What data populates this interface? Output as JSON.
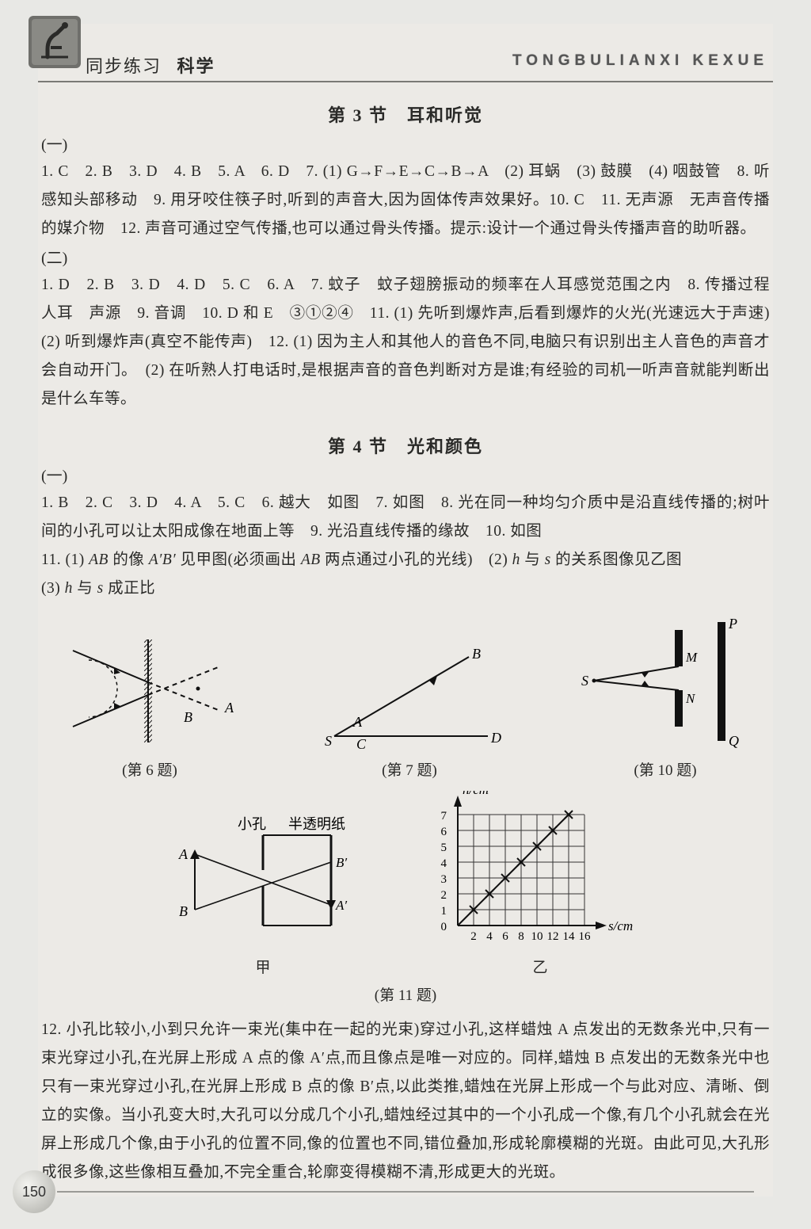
{
  "header": {
    "series": "同步练习",
    "subject": "科学",
    "pinyin": "TONGBULIANXI  KEXUE"
  },
  "section3": {
    "title": "第 3 节　耳和听觉",
    "part1_marker": "(一)",
    "part1_text": "1. C　2. B　3. D　4. B　5. A　6. D　7. (1) G→F→E→C→B→A　(2) 耳蜗　(3) 鼓膜　(4) 咽鼓管　8. 听　感知头部移动　9. 用牙咬住筷子时,听到的声音大,因为固体传声效果好。10. C　11. 无声源　无声音传播的媒介物　12. 声音可通过空气传播,也可以通过骨头传播。提示:设计一个通过骨头传播声音的助听器。",
    "part2_marker": "(二)",
    "part2_text": "1. D　2. B　3. D　4. D　5. C　6. A　7. 蚊子　蚊子翅膀振动的频率在人耳感觉范围之内　8. 传播过程　人耳　声源　9. 音调　10. D 和 E　③①②④　11. (1) 先听到爆炸声,后看到爆炸的火光(光速远大于声速)　(2) 听到爆炸声(真空不能传声)　12. (1) 因为主人和其他人的音色不同,电脑只有识别出主人音色的声音才会自动开门。　(2) 在听熟人打电话时,是根据声音的音色判断对方是谁;有经验的司机一听声音就能判断出是什么车等。"
  },
  "section4": {
    "title": "第 4 节　光和颜色",
    "part1_marker": "(一)",
    "text_a": "1. B　2. C　3. D　4. A　5. C　6. 越大　如图　7. 如图　8. 光在同一种均匀介质中是沿直线传播的;树叶间的小孔可以让太阳成像在地面上等　9. 光沿直线传播的缘故　10. 如图",
    "text_b_pre": "11. (1) ",
    "text_b_ab": "AB",
    "text_b_mid1": " 的像 ",
    "text_b_apbp": "A′B′",
    "text_b_mid2": " 见甲图(必须画出 ",
    "text_b_ab2": "AB",
    "text_b_mid3": " 两点通过小孔的光线)　(2) ",
    "text_b_h": "h",
    "text_b_mid4": " 与 ",
    "text_b_s": "s",
    "text_b_mid5": " 的关系图像见乙图",
    "text_c_pre": "(3) ",
    "text_c_h": "h",
    "text_c_mid": " 与 ",
    "text_c_s": "s",
    "text_c_end": " 成正比",
    "fig6_caption": "(第 6 题)",
    "fig7_caption": "(第 7 题)",
    "fig10_caption": "(第 10 题)",
    "fig11_jia": "甲",
    "fig11_yi": "乙",
    "fig11_caption": "(第 11 题)",
    "q12": "12. 小孔比较小,小到只允许一束光(集中在一起的光束)穿过小孔,这样蜡烛 A 点发出的无数条光中,只有一束光穿过小孔,在光屏上形成 A 点的像 A′点,而且像点是唯一对应的。同样,蜡烛 B 点发出的无数条光中也只有一束光穿过小孔,在光屏上形成 B 点的像 B′点,以此类推,蜡烛在光屏上形成一个与此对应、清晰、倒立的实像。当小孔变大时,大孔可以分成几个小孔,蜡烛经过其中的一个小孔成一个像,有几个小孔就会在光屏上形成几个像,由于小孔的位置不同,像的位置也不同,错位叠加,形成轮廓模糊的光斑。由此可见,大孔形成很多像,这些像相互叠加,不完全重合,轮廓变得模糊不清,形成更大的光斑。"
  },
  "figures": {
    "fig6": {
      "labels": {
        "A": "A",
        "B": "B"
      }
    },
    "fig7": {
      "labels": {
        "A": "A",
        "B": "B",
        "C": "C",
        "D": "D",
        "S": "S"
      }
    },
    "fig10": {
      "labels": {
        "S": "S",
        "M": "M",
        "N": "N",
        "P": "P",
        "Q": "Q"
      }
    },
    "fig11a": {
      "labels": {
        "A": "A",
        "B": "B",
        "Ap": "A′",
        "Bp": "B′",
        "hole": "小孔",
        "paper": "半透明纸"
      }
    },
    "fig11b": {
      "y_label": "h/cm",
      "x_label": "s/cm",
      "y_ticks": [
        "0",
        "1",
        "2",
        "3",
        "4",
        "5",
        "6",
        "7"
      ],
      "x_ticks": [
        "2",
        "4",
        "6",
        "8",
        "10",
        "12",
        "14",
        "16"
      ],
      "points": [
        [
          2,
          1
        ],
        [
          4,
          2
        ],
        [
          6,
          3
        ],
        [
          8,
          4
        ],
        [
          10,
          5
        ],
        [
          12,
          6
        ],
        [
          14,
          7
        ]
      ],
      "grid_color": "#333",
      "line_color": "#111"
    }
  },
  "page_number": "150",
  "colors": {
    "bg": "#e8e8e5",
    "paper": "#eceae6",
    "text": "#2a2a28",
    "rule": "#7a7a76"
  }
}
